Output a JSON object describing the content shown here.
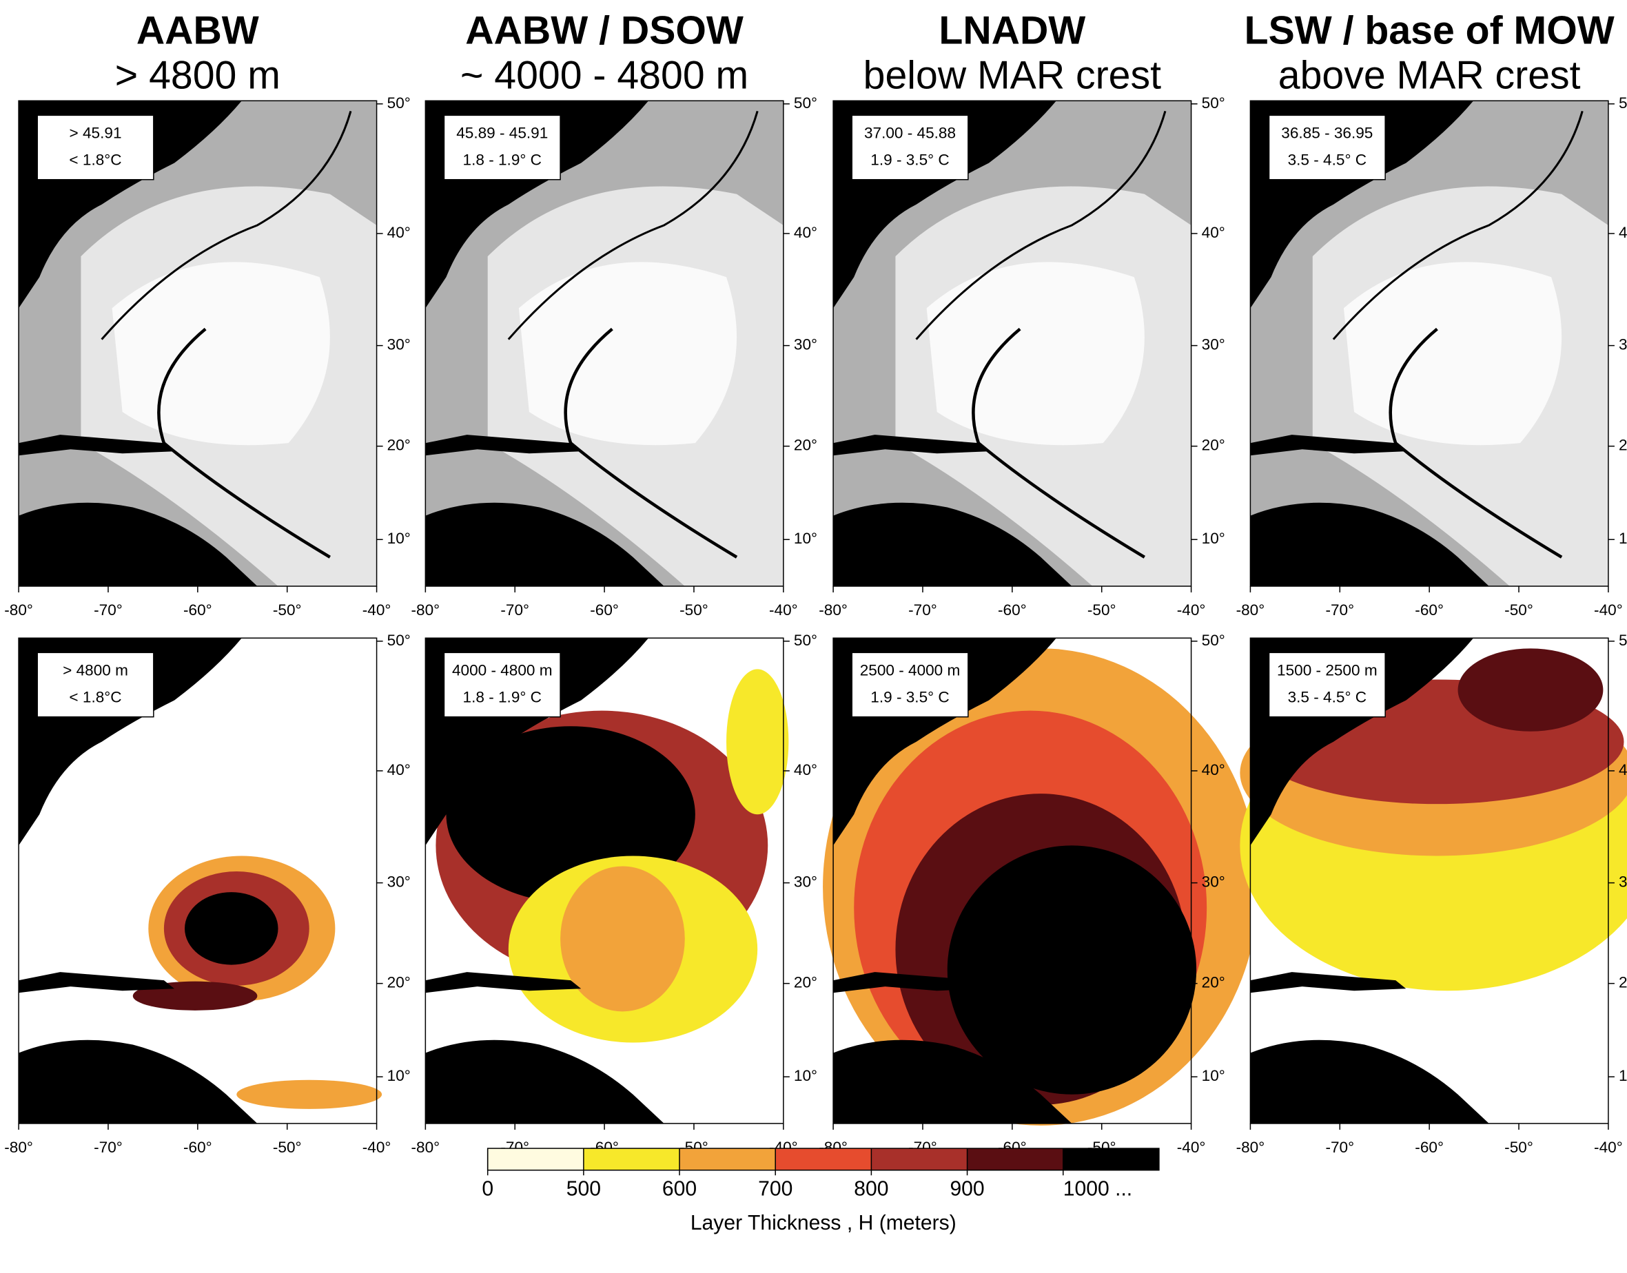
{
  "columns": [
    {
      "title": "AABW",
      "subtitle": "> 4800 m",
      "top_box": [
        "> 45.91",
        "< 1.8°C"
      ],
      "bottom_box": [
        "> 4800 m",
        "< 1.8°C"
      ]
    },
    {
      "title": "AABW / DSOW",
      "subtitle": "~ 4000 - 4800 m",
      "top_box": [
        "45.89 - 45.91",
        "1.8 - 1.9° C"
      ],
      "bottom_box": [
        "4000 - 4800 m",
        "1.8 - 1.9° C"
      ]
    },
    {
      "title": "LNADW",
      "subtitle": "below MAR crest",
      "top_box": [
        "37.00  - 45.88",
        "1.9 - 3.5° C"
      ],
      "bottom_box": [
        "2500 - 4000 m",
        "1.9 - 3.5° C"
      ]
    },
    {
      "title": "LSW / base of MOW",
      "subtitle": "above MAR crest",
      "top_box": [
        "36.85 - 36.95",
        "3.5 - 4.5° C"
      ],
      "bottom_box": [
        "1500 - 2500 m",
        "3.5 - 4.5° C"
      ]
    }
  ],
  "lon_ticks": [
    "-80°",
    "-70°",
    "-60°",
    "-50°",
    "-40°"
  ],
  "lat_ticks": [
    "10°",
    "20°",
    "30°",
    "40°",
    "50°"
  ],
  "colorbar": {
    "ticks": [
      0,
      500,
      600,
      700,
      800,
      900,
      {
        "value": 1000,
        "label": "1000 ..."
      }
    ],
    "colors": [
      "#fffbe0",
      "#f7e82a",
      "#f2a33a",
      "#e64c2e",
      "#a8302a",
      "#5a0e12",
      "#000000"
    ],
    "label": "Layer Thickness , H (meters)"
  }
}
